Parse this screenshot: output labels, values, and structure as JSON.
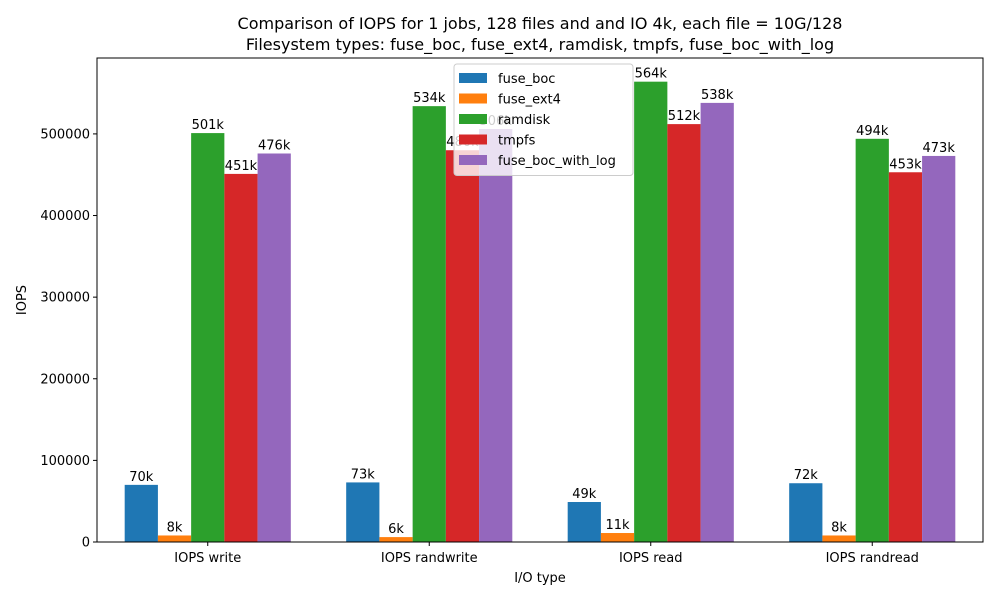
{
  "chart_data": {
    "type": "bar",
    "title_line1": "Comparison of IOPS for 1 jobs, 128 files and  and IO 4k, each file = 10G/128",
    "title_line2": "Filesystem types: fuse_boc, fuse_ext4, ramdisk, tmpfs, fuse_boc_with_log",
    "xlabel": "I/O type",
    "ylabel": "IOPS",
    "ylim": [
      0,
      593000
    ],
    "yticks": [
      0,
      100000,
      200000,
      300000,
      400000,
      500000
    ],
    "ytick_labels": [
      "0",
      "100000",
      "200000",
      "300000",
      "400000",
      "500000"
    ],
    "categories": [
      "IOPS write",
      "IOPS randwrite",
      "IOPS read",
      "IOPS randread"
    ],
    "series": [
      {
        "name": "fuse_boc",
        "color": "#1f77b4",
        "values": [
          70000,
          73000,
          49000,
          72000
        ],
        "labels": [
          "70k",
          "73k",
          "49k",
          "72k"
        ]
      },
      {
        "name": "fuse_ext4",
        "color": "#ff7f0e",
        "values": [
          8000,
          6000,
          11000,
          8000
        ],
        "labels": [
          "8k",
          "6k",
          "11k",
          "8k"
        ]
      },
      {
        "name": "ramdisk",
        "color": "#2ca02c",
        "values": [
          501000,
          534000,
          564000,
          494000
        ],
        "labels": [
          "501k",
          "534k",
          "564k",
          "494k"
        ]
      },
      {
        "name": "tmpfs",
        "color": "#d62728",
        "values": [
          451000,
          480000,
          512000,
          453000
        ],
        "labels": [
          "451k",
          "480k",
          "512k",
          "453k"
        ]
      },
      {
        "name": "fuse_boc_with_log",
        "color": "#9467bd",
        "values": [
          476000,
          506000,
          538000,
          473000
        ],
        "labels": [
          "476k",
          "506k",
          "538k",
          "473k"
        ]
      }
    ],
    "legend_position": "upper-center",
    "grid": false
  }
}
